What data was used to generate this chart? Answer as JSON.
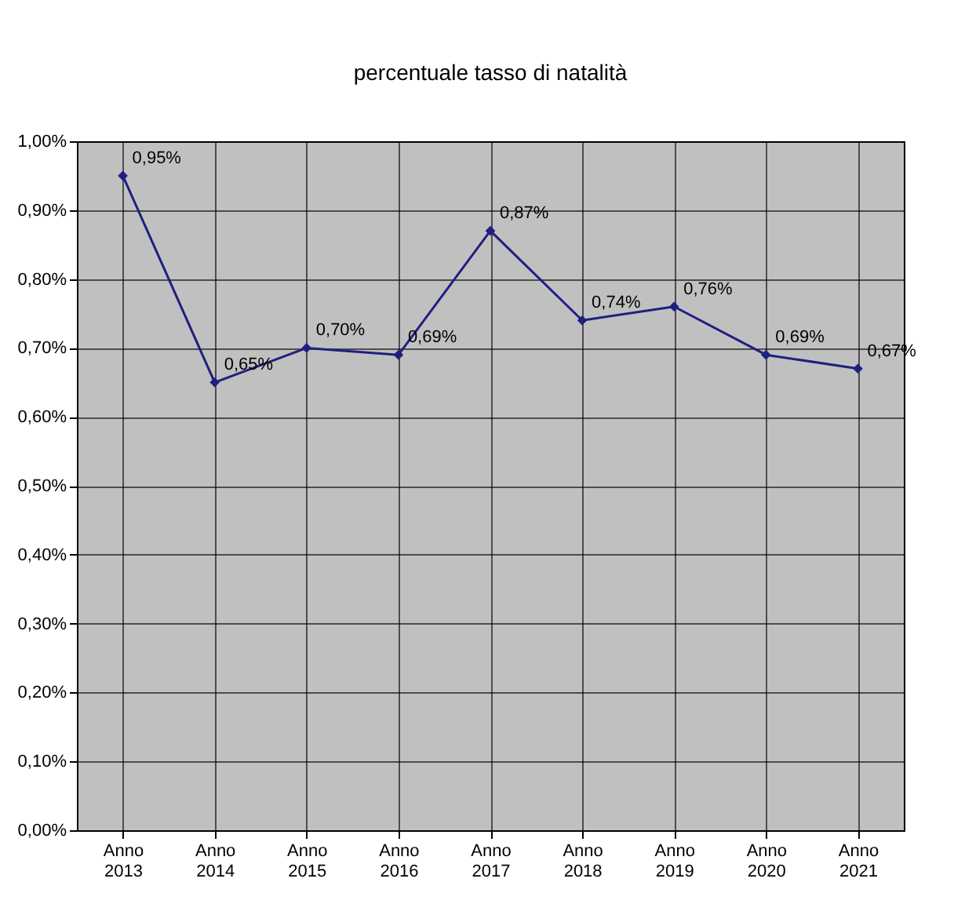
{
  "chart_data": {
    "type": "line",
    "title": "percentuale tasso di natalità",
    "categories": [
      "Anno 2013",
      "Anno 2014",
      "Anno 2015",
      "Anno 2016",
      "Anno 2017",
      "Anno 2018",
      "Anno 2019",
      "Anno 2020",
      "Anno 2021"
    ],
    "series": [
      {
        "color": "#1f1f80",
        "values": [
          0.95,
          0.65,
          0.7,
          0.69,
          0.87,
          0.74,
          0.76,
          0.69,
          0.67
        ],
        "value_labels": [
          "0,95%",
          "0,65%",
          "0,70%",
          "0,69%",
          "0,87%",
          "0,74%",
          "0,76%",
          "0,69%",
          "0,67%"
        ]
      }
    ],
    "ylim": [
      0,
      1.0
    ],
    "yticks": [
      {
        "value": 0,
        "label": "0,00%"
      },
      {
        "value": 0.1,
        "label": "0,10%"
      },
      {
        "value": 0.2,
        "label": "0,20%"
      },
      {
        "value": 0.3,
        "label": "0,30%"
      },
      {
        "value": 0.4,
        "label": "0,40%"
      },
      {
        "value": 0.5,
        "label": "0,50%"
      },
      {
        "value": 0.6,
        "label": "0,60%"
      },
      {
        "value": 0.7,
        "label": "0,70%"
      },
      {
        "value": 0.8,
        "label": "0,80%"
      },
      {
        "value": 0.9,
        "label": "0,90%"
      },
      {
        "value": 1.0,
        "label": "1,00%"
      }
    ],
    "grid": true,
    "marker": "diamond",
    "line_style": "solid"
  }
}
